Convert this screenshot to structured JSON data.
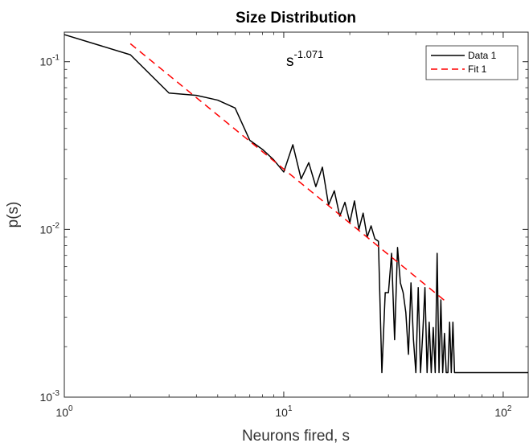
{
  "chart_data": {
    "type": "line",
    "title": "Size Distribution",
    "xlabel": "Neurons fired, s",
    "ylabel": "p(s)",
    "xscale": "log",
    "yscale": "log",
    "xlim": [
      1,
      130
    ],
    "ylim": [
      0.001,
      0.15
    ],
    "grid": false,
    "legend_position": "top-right",
    "annotation": {
      "base": "s",
      "exponent": "-1.071"
    },
    "x_ticks": [
      {
        "value": 1,
        "base": "10",
        "exp": "0"
      },
      {
        "value": 10,
        "base": "10",
        "exp": "1"
      },
      {
        "value": 100,
        "base": "10",
        "exp": "2"
      }
    ],
    "y_ticks": [
      {
        "value": 0.001,
        "base": "10",
        "exp": "-3"
      },
      {
        "value": 0.01,
        "base": "10",
        "exp": "-2"
      },
      {
        "value": 0.1,
        "base": "10",
        "exp": "-1"
      }
    ],
    "series": [
      {
        "name": "Data 1",
        "color": "#000000",
        "dash": "solid",
        "x": [
          1,
          2,
          3,
          4,
          5,
          6,
          7,
          8,
          9,
          10,
          11,
          12,
          13,
          14,
          15,
          16,
          17,
          18,
          19,
          20,
          21,
          22,
          23,
          24,
          25,
          26,
          27,
          28,
          29,
          30,
          31,
          32,
          33,
          34,
          35,
          36,
          37,
          38,
          39,
          40,
          41,
          42,
          43,
          44,
          45,
          46,
          47,
          48,
          49,
          50,
          51,
          52,
          53,
          54,
          55,
          56,
          57,
          58,
          59,
          60,
          130
        ],
        "y": [
          0.145,
          0.11,
          0.065,
          0.063,
          0.059,
          0.053,
          0.034,
          0.03,
          0.026,
          0.022,
          0.032,
          0.02,
          0.025,
          0.018,
          0.0235,
          0.014,
          0.017,
          0.012,
          0.0145,
          0.011,
          0.0148,
          0.01,
          0.0125,
          0.009,
          0.0105,
          0.0088,
          0.0085,
          0.0014,
          0.0042,
          0.0042,
          0.0072,
          0.0022,
          0.0078,
          0.0048,
          0.0042,
          0.0032,
          0.0018,
          0.0048,
          0.0022,
          0.0014,
          0.0045,
          0.0014,
          0.0024,
          0.0045,
          0.0014,
          0.0028,
          0.0014,
          0.0026,
          0.0014,
          0.0072,
          0.0014,
          0.0038,
          0.0014,
          0.0024,
          0.0014,
          0.0014,
          0.0028,
          0.0014,
          0.0028,
          0.0014,
          0.0014
        ]
      },
      {
        "name": "Fit 1",
        "color": "#ff0000",
        "dash": "dashed",
        "x": [
          2,
          55
        ],
        "y": [
          0.128,
          0.0037
        ]
      }
    ]
  }
}
